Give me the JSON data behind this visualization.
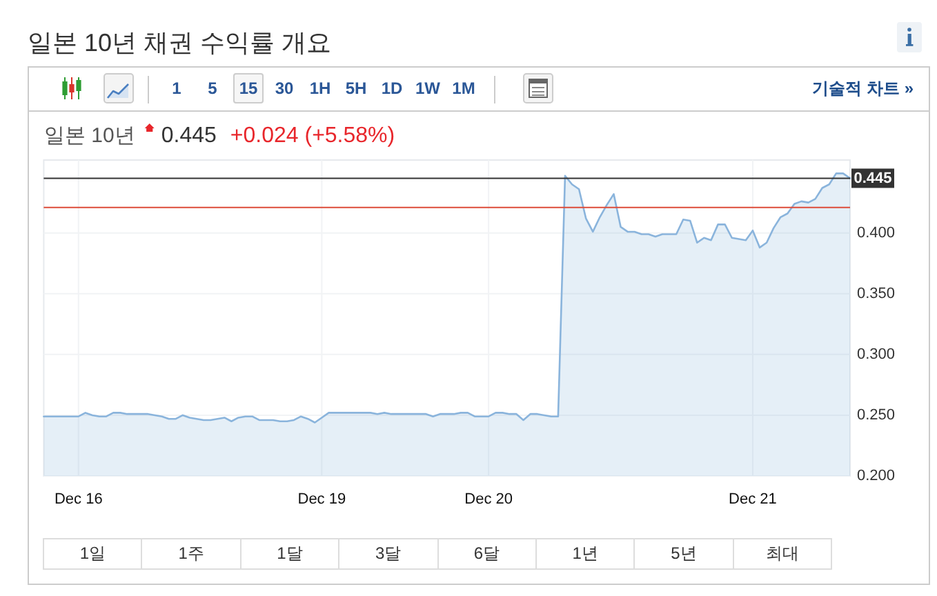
{
  "chart_data": [
    {
      "type": "other",
      "title": "일본 10년 채권 수익률 개요",
      "annotations": [
        "1",
        "5",
        "15",
        "30",
        "1H",
        "5H",
        "1D",
        "1W",
        "1M",
        "기술적 차트 »"
      ]
    },
    {
      "type": "area",
      "title": "일본 10년",
      "annotations": [
        "0.445",
        "+0.024 (+5.58%)"
      ],
      "categories": [
        null,
        null,
        null,
        null,
        null,
        "Dec 16",
        null,
        null,
        null,
        null,
        null,
        null,
        null,
        null,
        null,
        null,
        null,
        null,
        null,
        null,
        null,
        null,
        null,
        null,
        null,
        null,
        null,
        null,
        null,
        null,
        null,
        null,
        null,
        null,
        null,
        null,
        null,
        null,
        null,
        null,
        "Dec 19",
        null,
        null,
        null,
        null,
        null,
        null,
        null,
        null,
        null,
        null,
        null,
        null,
        null,
        null,
        null,
        null,
        null,
        null,
        null,
        null,
        null,
        null,
        null,
        "Dec 20",
        null,
        null,
        null,
        null,
        null,
        null,
        null,
        null,
        null,
        null,
        null,
        null,
        null,
        null,
        null,
        null,
        null,
        null,
        null,
        null,
        null,
        null,
        null,
        null,
        null,
        null,
        null,
        null,
        null,
        null,
        null,
        null,
        null,
        null,
        null,
        null,
        null,
        "Dec 21",
        null,
        null,
        null,
        null,
        null,
        null,
        null,
        null,
        null,
        null,
        null,
        null,
        null,
        null
      ],
      "series": [
        {
          "color": "#8ab4dc",
          "values": [
            0.249,
            0.249,
            0.249,
            0.249,
            0.249,
            0.249,
            0.252,
            0.25,
            0.249,
            0.249,
            0.252,
            0.252,
            0.251,
            0.251,
            0.251,
            0.251,
            0.25,
            0.249,
            0.247,
            0.247,
            0.25,
            0.248,
            0.247,
            0.246,
            0.246,
            0.247,
            0.248,
            0.245,
            0.248,
            0.249,
            0.249,
            0.246,
            0.246,
            0.246,
            0.245,
            0.245,
            0.246,
            0.249,
            0.247,
            0.244,
            0.248,
            0.252,
            0.252,
            0.252,
            0.252,
            0.252,
            0.252,
            0.252,
            0.251,
            0.252,
            0.251,
            0.251,
            0.251,
            0.251,
            0.251,
            0.251,
            0.249,
            0.251,
            0.251,
            0.251,
            0.252,
            0.252,
            0.249,
            0.249,
            0.249,
            0.252,
            0.252,
            0.251,
            0.251,
            0.246,
            0.251,
            0.251,
            0.25,
            0.249,
            0.249,
            0.447,
            0.44,
            0.436,
            0.412,
            0.401,
            0.413,
            0.423,
            0.432,
            0.405,
            0.401,
            0.401,
            0.399,
            0.399,
            0.397,
            0.399,
            0.399,
            0.399,
            0.411,
            0.41,
            0.392,
            0.396,
            0.394,
            0.407,
            0.407,
            0.396,
            0.395,
            0.394,
            0.402,
            0.388,
            0.392,
            0.404,
            0.413,
            0.416,
            0.424,
            0.426,
            0.425,
            0.428,
            0.437,
            0.44,
            0.449,
            0.449,
            0.445
          ]
        }
      ],
      "ylim": [
        0.2,
        0.46
      ],
      "yticks": [
        {
          "value": 0.2,
          "label": "0.200"
        },
        {
          "value": 0.25,
          "label": "0.250"
        },
        {
          "value": 0.3,
          "label": "0.300"
        },
        {
          "value": 0.35,
          "label": "0.350"
        },
        {
          "value": 0.4,
          "label": "0.400"
        }
      ],
      "ref_lines": [
        {
          "axis": "y",
          "value": 0.445,
          "label": "0.445",
          "color": "#333333"
        },
        {
          "axis": "y",
          "value": 0.421,
          "color": "#dd4b39"
        }
      ],
      "grid": true
    },
    {
      "type": "other",
      "annotations": [
        "1일",
        "1주",
        "1달",
        "3달",
        "6달",
        "1년",
        "5년",
        "최대"
      ]
    }
  ]
}
